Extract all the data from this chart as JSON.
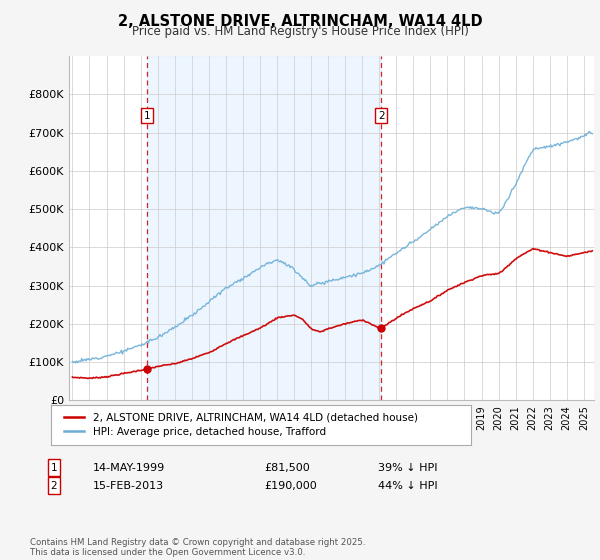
{
  "title": "2, ALSTONE DRIVE, ALTRINCHAM, WA14 4LD",
  "subtitle": "Price paid vs. HM Land Registry's House Price Index (HPI)",
  "ylim": [
    0,
    900000
  ],
  "yticks": [
    0,
    100000,
    200000,
    300000,
    400000,
    500000,
    600000,
    700000,
    800000
  ],
  "ytick_labels": [
    "£0",
    "£100K",
    "£200K",
    "£300K",
    "£400K",
    "£500K",
    "£600K",
    "£700K",
    "£800K"
  ],
  "hpi_color": "#6baed6",
  "price_color": "#cc0000",
  "vline_color": "#cc0000",
  "shade_color": "#ddeeff",
  "legend_house": "2, ALSTONE DRIVE, ALTRINCHAM, WA14 4LD (detached house)",
  "legend_hpi": "HPI: Average price, detached house, Trafford",
  "transaction1_date": "14-MAY-1999",
  "transaction1_price": "£81,500",
  "transaction1_hpi": "39% ↓ HPI",
  "transaction1_year": 1999.37,
  "transaction2_date": "15-FEB-2013",
  "transaction2_price": "£190,000",
  "transaction2_hpi": "44% ↓ HPI",
  "transaction2_year": 2013.12,
  "footer": "Contains HM Land Registry data © Crown copyright and database right 2025.\nThis data is licensed under the Open Government Licence v3.0.",
  "bg_color": "#f5f5f5",
  "plot_bg_color": "#ffffff",
  "grid_color": "#cccccc"
}
